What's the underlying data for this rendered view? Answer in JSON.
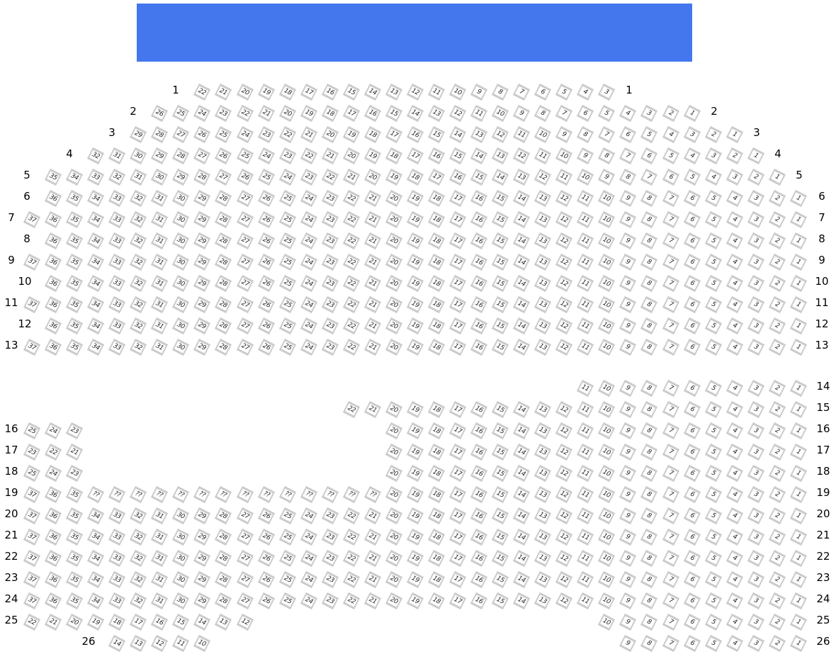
{
  "stage": {
    "color": "#4477ee"
  },
  "seat_border_color": "#cbcbcb",
  "rows": [
    {
      "label": "1",
      "segments": [
        [
          "22",
          "21",
          "20",
          "19",
          "18",
          "17",
          "16",
          "15",
          "14",
          "13",
          "12",
          "11",
          "10",
          "9",
          "8",
          "7",
          "6",
          "5",
          "4",
          "3"
        ]
      ]
    },
    {
      "label": "2",
      "segments": [
        [
          "26",
          "25",
          "24",
          "23",
          "22",
          "21",
          "20",
          "19",
          "18",
          "17",
          "16",
          "15",
          "14",
          "13",
          "12",
          "11",
          "10",
          "9",
          "8",
          "7",
          "6",
          "5",
          "4",
          "3",
          "2",
          "1"
        ]
      ]
    },
    {
      "label": "3",
      "segments": [
        [
          "29",
          "28",
          "27",
          "26",
          "25",
          "24",
          "23",
          "22",
          "21",
          "20",
          "19",
          "18",
          "17",
          "16",
          "15",
          "14",
          "13",
          "12",
          "11",
          "10",
          "9",
          "8",
          "7",
          "6",
          "5",
          "4",
          "3",
          "2",
          "1"
        ]
      ]
    },
    {
      "label": "4",
      "segments": [
        [
          "32",
          "31",
          "30",
          "29",
          "28",
          "27",
          "26",
          "25",
          "24",
          "23",
          "22",
          "21",
          "20",
          "19",
          "18",
          "17",
          "16",
          "15",
          "14",
          "13",
          "12",
          "11",
          "10",
          "9",
          "8",
          "7",
          "6",
          "5",
          "4",
          "3",
          "2",
          "1"
        ]
      ]
    },
    {
      "label": "5",
      "segments": [
        [
          "35",
          "34",
          "33",
          "32",
          "31",
          "30",
          "29",
          "28",
          "27",
          "26",
          "25",
          "24",
          "23",
          "22",
          "21",
          "20",
          "19",
          "18",
          "17",
          "16",
          "15",
          "14",
          "13",
          "12",
          "11",
          "10",
          "9",
          "8",
          "7",
          "6",
          "5",
          "4",
          "3",
          "2",
          "1"
        ]
      ]
    },
    {
      "label": "6",
      "segments": [
        [
          "36",
          "35",
          "34",
          "33",
          "32",
          "31",
          "30",
          "29",
          "28",
          "27",
          "26",
          "25",
          "24",
          "23",
          "22",
          "21",
          "20",
          "19",
          "18",
          "17",
          "16",
          "15",
          "14",
          "13",
          "12",
          "11",
          "10",
          "9",
          "8",
          "7",
          "6",
          "5",
          "4",
          "3",
          "2",
          "1"
        ]
      ]
    },
    {
      "label": "7",
      "segments": [
        [
          "37",
          "36",
          "35",
          "34",
          "33",
          "32",
          "31",
          "30",
          "29",
          "28",
          "27",
          "26",
          "25",
          "24",
          "23",
          "22",
          "21",
          "20",
          "19",
          "18",
          "17",
          "16",
          "15",
          "14",
          "13",
          "12",
          "11",
          "10",
          "9",
          "8",
          "7",
          "6",
          "5",
          "4",
          "3",
          "2",
          "1"
        ]
      ]
    },
    {
      "label": "8",
      "segments": [
        [
          "36",
          "35",
          "34",
          "33",
          "32",
          "31",
          "30",
          "29",
          "28",
          "27",
          "26",
          "25",
          "24",
          "23",
          "22",
          "21",
          "20",
          "19",
          "18",
          "17",
          "16",
          "15",
          "14",
          "13",
          "12",
          "11",
          "10",
          "9",
          "8",
          "7",
          "6",
          "5",
          "4",
          "3",
          "2",
          "1"
        ]
      ]
    },
    {
      "label": "9",
      "segments": [
        [
          "37",
          "36",
          "35",
          "34",
          "33",
          "32",
          "31",
          "30",
          "29",
          "28",
          "27",
          "26",
          "25",
          "24",
          "23",
          "22",
          "21",
          "20",
          "19",
          "18",
          "17",
          "16",
          "15",
          "14",
          "13",
          "12",
          "11",
          "10",
          "9",
          "8",
          "7",
          "6",
          "5",
          "4",
          "3",
          "2",
          "1"
        ]
      ]
    },
    {
      "label": "10",
      "segments": [
        [
          "36",
          "35",
          "34",
          "33",
          "32",
          "31",
          "30",
          "29",
          "28",
          "27",
          "26",
          "25",
          "24",
          "23",
          "22",
          "21",
          "20",
          "19",
          "18",
          "17",
          "16",
          "15",
          "14",
          "13",
          "12",
          "11",
          "10",
          "9",
          "8",
          "7",
          "6",
          "5",
          "4",
          "3",
          "2",
          "1"
        ]
      ]
    },
    {
      "label": "11",
      "segments": [
        [
          "37",
          "36",
          "35",
          "34",
          "33",
          "32",
          "31",
          "30",
          "29",
          "28",
          "27",
          "26",
          "25",
          "24",
          "23",
          "22",
          "21",
          "20",
          "19",
          "18",
          "17",
          "16",
          "15",
          "14",
          "13",
          "12",
          "11",
          "10",
          "9",
          "8",
          "7",
          "6",
          "5",
          "4",
          "3",
          "2",
          "1"
        ]
      ]
    },
    {
      "label": "12",
      "segments": [
        [
          "36",
          "35",
          "34",
          "33",
          "32",
          "31",
          "30",
          "29",
          "28",
          "27",
          "26",
          "25",
          "24",
          "23",
          "22",
          "21",
          "20",
          "19",
          "18",
          "17",
          "16",
          "15",
          "14",
          "13",
          "12",
          "11",
          "10",
          "9",
          "8",
          "7",
          "6",
          "5",
          "4",
          "3",
          "2",
          "1"
        ]
      ]
    },
    {
      "label": "13",
      "segments": [
        [
          "37",
          "36",
          "35",
          "34",
          "33",
          "32",
          "31",
          "30",
          "29",
          "28",
          "27",
          "26",
          "25",
          "24",
          "23",
          "22",
          "21",
          "20",
          "19",
          "18",
          "17",
          "16",
          "15",
          "14",
          "13",
          "12",
          "11",
          "10",
          "9",
          "8",
          "7",
          "6",
          "5",
          "4",
          "3",
          "2",
          "1"
        ]
      ]
    },
    {
      "label": "14",
      "segments": [
        [
          "11",
          "10",
          "9",
          "8",
          "7",
          "6",
          "5",
          "4",
          "3",
          "2",
          "1"
        ]
      ]
    },
    {
      "label": "15",
      "segments": [
        [
          "22",
          "21",
          "20",
          "19",
          "18",
          "17",
          "16",
          "15",
          "14",
          "13",
          "12",
          "11",
          "10",
          "9",
          "8",
          "7",
          "6",
          "5",
          "4",
          "3",
          "2",
          "1"
        ]
      ]
    },
    {
      "label": "16",
      "segments": [
        [
          "25",
          "24",
          "23"
        ],
        [
          "20",
          "19",
          "18",
          "17",
          "16",
          "15",
          "14",
          "13",
          "12",
          "11",
          "10",
          "9",
          "8",
          "7",
          "6",
          "5",
          "4",
          "3",
          "2",
          "1"
        ]
      ]
    },
    {
      "label": "17",
      "segments": [
        [
          "23",
          "22",
          "21"
        ],
        [
          "20",
          "19",
          "18",
          "17",
          "16",
          "15",
          "14",
          "13",
          "12",
          "11",
          "10",
          "9",
          "8",
          "7",
          "6",
          "5",
          "4",
          "3",
          "2",
          "1"
        ]
      ]
    },
    {
      "label": "18",
      "segments": [
        [
          "25",
          "24",
          "23"
        ],
        [
          "20",
          "19",
          "18",
          "17",
          "16",
          "15",
          "14",
          "13",
          "12",
          "11",
          "10",
          "9",
          "8",
          "7",
          "6",
          "5",
          "4",
          "3",
          "2",
          "1"
        ]
      ]
    },
    {
      "label": "19",
      "segments": [
        [
          "37",
          "36",
          "35",
          "??",
          "??",
          "??",
          "??",
          "??",
          "??",
          "??",
          "??",
          "??",
          "??",
          "??",
          "??",
          "??",
          "??",
          "20",
          "19",
          "18",
          "17",
          "16",
          "15",
          "14",
          "13",
          "12",
          "11",
          "10",
          "9",
          "8",
          "7",
          "6",
          "5",
          "4",
          "3",
          "2",
          "1"
        ]
      ]
    },
    {
      "label": "20",
      "segments": [
        [
          "37",
          "36",
          "35",
          "34",
          "33",
          "32",
          "31",
          "30",
          "29",
          "28",
          "27",
          "26",
          "25",
          "24",
          "23",
          "22",
          "21",
          "20",
          "19",
          "18",
          "17",
          "16",
          "15",
          "14",
          "13",
          "12",
          "11",
          "10",
          "9",
          "8",
          "7",
          "6",
          "5",
          "4",
          "3",
          "2",
          "1"
        ]
      ]
    },
    {
      "label": "21",
      "segments": [
        [
          "37",
          "36",
          "35",
          "34",
          "33",
          "32",
          "31",
          "30",
          "29",
          "28",
          "27",
          "26",
          "25",
          "24",
          "23",
          "22",
          "21",
          "20",
          "19",
          "18",
          "17",
          "16",
          "15",
          "14",
          "13",
          "12",
          "11",
          "10",
          "9",
          "8",
          "7",
          "6",
          "5",
          "4",
          "3",
          "2",
          "1"
        ]
      ]
    },
    {
      "label": "22",
      "segments": [
        [
          "37",
          "36",
          "35",
          "34",
          "33",
          "32",
          "31",
          "30",
          "29",
          "28",
          "27",
          "26",
          "25",
          "24",
          "23",
          "22",
          "21",
          "20",
          "19",
          "18",
          "17",
          "16",
          "15",
          "14",
          "13",
          "12",
          "11",
          "10",
          "9",
          "8",
          "7",
          "6",
          "5",
          "4",
          "3",
          "2",
          "1"
        ]
      ]
    },
    {
      "label": "23",
      "segments": [
        [
          "37",
          "36",
          "35",
          "34",
          "33",
          "32",
          "31",
          "30",
          "29",
          "28",
          "27",
          "26",
          "25",
          "24",
          "23",
          "22",
          "21",
          "20",
          "19",
          "18",
          "17",
          "16",
          "15",
          "14",
          "13",
          "12",
          "11",
          "10",
          "9",
          "8",
          "7",
          "6",
          "5",
          "4",
          "3",
          "2",
          "1"
        ]
      ]
    },
    {
      "label": "24",
      "segments": [
        [
          "37",
          "36",
          "35",
          "34",
          "33",
          "32",
          "31",
          "30",
          "29",
          "28",
          "27",
          "26",
          "25",
          "24",
          "23",
          "22",
          "21",
          "20",
          "19",
          "18",
          "17",
          "16",
          "15",
          "14",
          "13",
          "12",
          "11",
          "10",
          "9",
          "8",
          "7",
          "6",
          "5",
          "4",
          "3",
          "2",
          "1"
        ]
      ]
    },
    {
      "label": "25",
      "segments": [
        [
          "22",
          "21",
          "20",
          "19",
          "18",
          "17",
          "16",
          "15",
          "14",
          "13",
          "12"
        ],
        [
          "10",
          "9",
          "8",
          "7",
          "6",
          "5",
          "4",
          "3",
          "2",
          "1"
        ]
      ]
    },
    {
      "label": "26",
      "segments": [
        [
          "14",
          "13",
          "12",
          "11",
          "10"
        ],
        [
          "9",
          "8",
          "7",
          "6",
          "5",
          "4",
          "3",
          "2",
          "1"
        ]
      ]
    }
  ]
}
